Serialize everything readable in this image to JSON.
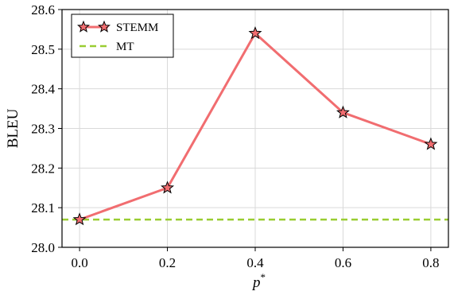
{
  "chart_data": {
    "type": "line",
    "xlabel": "p*",
    "ylabel": "BLEU",
    "x": [
      0.0,
      0.2,
      0.4,
      0.6,
      0.8
    ],
    "x_tick_labels": [
      "0.0",
      "0.2",
      "0.4",
      "0.6",
      "0.8"
    ],
    "xlim": [
      -0.04,
      0.84
    ],
    "ylim": [
      28.0,
      28.6
    ],
    "y_ticks": [
      28.0,
      28.1,
      28.2,
      28.3,
      28.4,
      28.5,
      28.6
    ],
    "y_tick_labels": [
      "28.0",
      "28.1",
      "28.2",
      "28.3",
      "28.4",
      "28.5",
      "28.6"
    ],
    "grid": true,
    "legend_position": "top-left",
    "series": [
      {
        "name": "STEMM",
        "values": [
          28.07,
          28.15,
          28.54,
          28.34,
          28.26
        ],
        "color": "#f16d70",
        "marker": "star",
        "line_style": "solid"
      },
      {
        "name": "MT",
        "constant": 28.07,
        "color": "#9acd32",
        "line_style": "dashed"
      }
    ]
  }
}
